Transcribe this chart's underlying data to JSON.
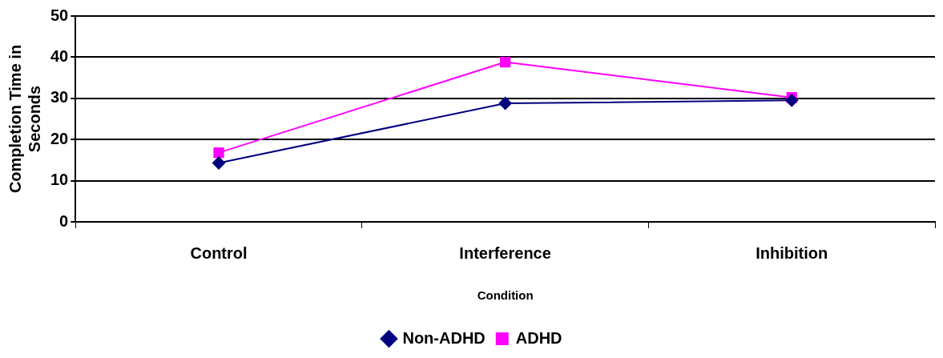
{
  "chart_data": {
    "type": "line",
    "xlabel": "Condition",
    "ylabel": "Completion Time in Seconds",
    "categories": [
      "Control",
      "Interference",
      "Inhibition"
    ],
    "series": [
      {
        "name": "Non-ADHD",
        "color": "#000080",
        "values": [
          14.3,
          28.8,
          29.5
        ],
        "marker": "diamond"
      },
      {
        "name": "ADHD",
        "color": "#ff00ff",
        "values": [
          16.8,
          38.8,
          30.2
        ],
        "marker": "square"
      }
    ],
    "ylim": [
      0,
      50
    ],
    "yticks": [
      0,
      10,
      20,
      30,
      40,
      50
    ],
    "grid": "y",
    "legend": "bottom"
  }
}
